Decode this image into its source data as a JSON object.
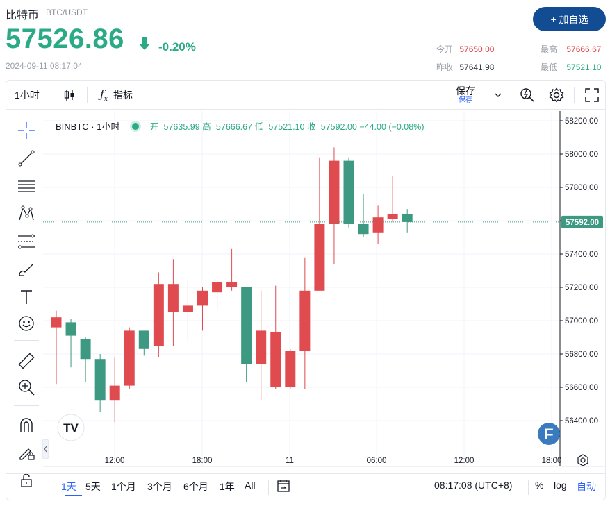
{
  "header": {
    "name": "比特币",
    "pair": "BTC/USDT",
    "price": "57526.86",
    "change_pct": "-0.20%",
    "timestamp": "2024-09-11 08:17:04",
    "add_favorite_label": "+ 加自选",
    "stats": {
      "open_label": "今开",
      "open_value": "57650.00",
      "high_label": "最高",
      "high_value": "57666.67",
      "prev_close_label": "昨收",
      "prev_close_value": "57641.98",
      "low_label": "最低",
      "low_value": "57521.10"
    }
  },
  "toolbar": {
    "interval": "1小时",
    "indicators_label": "指标",
    "save_label": "保存",
    "save_sub": "保存"
  },
  "legend": {
    "symbol": "BINBTC · 1小时",
    "ohlc": "开=57635.99 高=57666.67 低=57521.10 收=57592.00 −44.00 (−0.08%)"
  },
  "bottom": {
    "ranges": [
      "1天",
      "5天",
      "1个月",
      "3个月",
      "6个月",
      "1年",
      "All"
    ],
    "active_range": "1天",
    "clock": "08:17:08 (UTC+8)",
    "percent_label": "%",
    "log_label": "log",
    "auto_label": "自动"
  },
  "colors": {
    "up": "#2aaa85",
    "down": "#e0454b",
    "up_candle": "#3d9981",
    "down_candle": "#e04b50",
    "accent": "#124c92",
    "highlight": "#2962ff"
  },
  "chart_data": {
    "type": "candlestick",
    "title": "BINBTC · 1小时",
    "x_ticks": [
      "12:00",
      "18:00",
      "11",
      "06:00",
      "12:00",
      "18:00"
    ],
    "y_ticks": [
      "56400.00",
      "56600.00",
      "56800.00",
      "57000.00",
      "57200.00",
      "57400.00",
      "57600.00",
      "57800.00",
      "58000.00",
      "58200.00"
    ],
    "ylim": [
      56260,
      58230
    ],
    "last_price_label": "57592.00",
    "last_price": 57592,
    "candles": [
      {
        "o": 56960,
        "h": 57060,
        "l": 56620,
        "c": 57020
      },
      {
        "o": 56990,
        "h": 57010,
        "l": 56720,
        "c": 56910
      },
      {
        "o": 56890,
        "h": 56900,
        "l": 56630,
        "c": 56770
      },
      {
        "o": 56770,
        "h": 56800,
        "l": 56450,
        "c": 56520
      },
      {
        "o": 56520,
        "h": 56780,
        "l": 56390,
        "c": 56610
      },
      {
        "o": 56610,
        "h": 56960,
        "l": 56590,
        "c": 56940
      },
      {
        "o": 56940,
        "h": 56940,
        "l": 56790,
        "c": 56830
      },
      {
        "o": 56850,
        "h": 57290,
        "l": 56780,
        "c": 57220
      },
      {
        "o": 57050,
        "h": 57370,
        "l": 56850,
        "c": 57220
      },
      {
        "o": 57050,
        "h": 57240,
        "l": 56880,
        "c": 57090
      },
      {
        "o": 57090,
        "h": 57200,
        "l": 56940,
        "c": 57180
      },
      {
        "o": 57170,
        "h": 57240,
        "l": 57070,
        "c": 57230
      },
      {
        "o": 57200,
        "h": 57430,
        "l": 57180,
        "c": 57230
      },
      {
        "o": 57200,
        "h": 57200,
        "l": 56630,
        "c": 56740
      },
      {
        "o": 56740,
        "h": 57180,
        "l": 56520,
        "c": 56940
      },
      {
        "o": 56600,
        "h": 57210,
        "l": 56590,
        "c": 56930
      },
      {
        "o": 56600,
        "h": 56830,
        "l": 56590,
        "c": 56820
      },
      {
        "o": 56820,
        "h": 57380,
        "l": 56590,
        "c": 57180
      },
      {
        "o": 57180,
        "h": 57980,
        "l": 57180,
        "c": 57580
      },
      {
        "o": 57580,
        "h": 58040,
        "l": 57340,
        "c": 57960
      },
      {
        "o": 57960,
        "h": 57980,
        "l": 57560,
        "c": 57580
      },
      {
        "o": 57580,
        "h": 57760,
        "l": 57500,
        "c": 57520
      },
      {
        "o": 57530,
        "h": 57690,
        "l": 57460,
        "c": 57620
      },
      {
        "o": 57610,
        "h": 57870,
        "l": 57590,
        "c": 57640
      },
      {
        "o": 57640,
        "h": 57670,
        "l": 57530,
        "c": 57592
      }
    ]
  }
}
